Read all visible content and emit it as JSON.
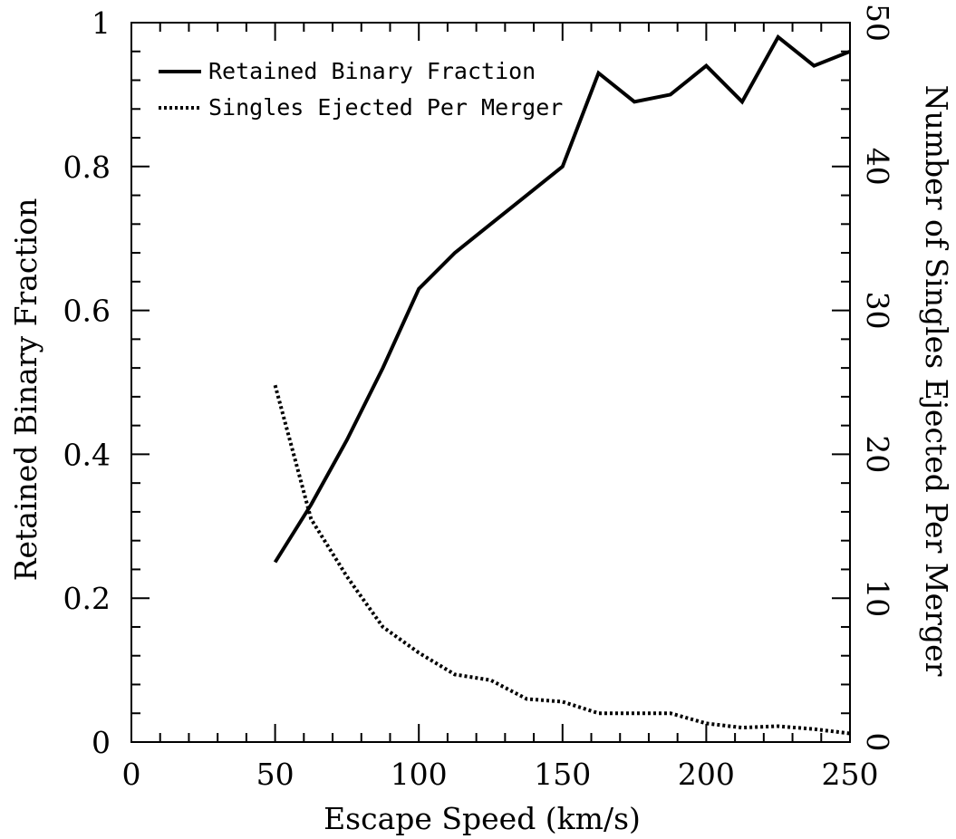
{
  "chart_data": {
    "type": "line",
    "xlabel": "Escape Speed (km/s)",
    "ylabel_left": "Retained Binary Fraction",
    "ylabel_right": "Number of Singles Ejected Per Merger",
    "xlim": [
      0,
      250
    ],
    "ylim_left": [
      0,
      1
    ],
    "ylim_right": [
      0,
      50
    ],
    "x_ticks": [
      "0",
      "50",
      "100",
      "150",
      "200",
      "250"
    ],
    "y_left_ticks": [
      "0",
      "0.2",
      "0.4",
      "0.6",
      "0.8",
      "1"
    ],
    "y_right_ticks": [
      "0",
      "10",
      "20",
      "30",
      "40",
      "50"
    ],
    "grid": false,
    "legend_position": "top-left",
    "series": [
      {
        "name": "Retained Binary Fraction",
        "axis": "left",
        "style": "solid",
        "x": [
          50,
          62.5,
          75,
          87.5,
          100,
          112.5,
          125,
          137.5,
          150,
          162.5,
          175,
          187.5,
          200,
          212.5,
          225,
          237.5,
          250
        ],
        "y": [
          0.25,
          0.33,
          0.42,
          0.52,
          0.63,
          0.68,
          0.72,
          0.76,
          0.8,
          0.93,
          0.89,
          0.9,
          0.94,
          0.89,
          0.98,
          0.94,
          0.96
        ]
      },
      {
        "name": "Singles Ejected Per Merger",
        "axis": "right",
        "style": "dotted",
        "x": [
          50,
          62.5,
          75,
          87.5,
          100,
          112.5,
          125,
          137.5,
          150,
          162.5,
          175,
          187.5,
          200,
          212.5,
          225,
          237.5,
          250
        ],
        "y": [
          24.8,
          15.5,
          11.5,
          8.0,
          6.2,
          4.7,
          4.3,
          3.0,
          2.8,
          2.0,
          2.0,
          2.0,
          1.3,
          1.0,
          1.1,
          0.9,
          0.6
        ]
      }
    ]
  }
}
